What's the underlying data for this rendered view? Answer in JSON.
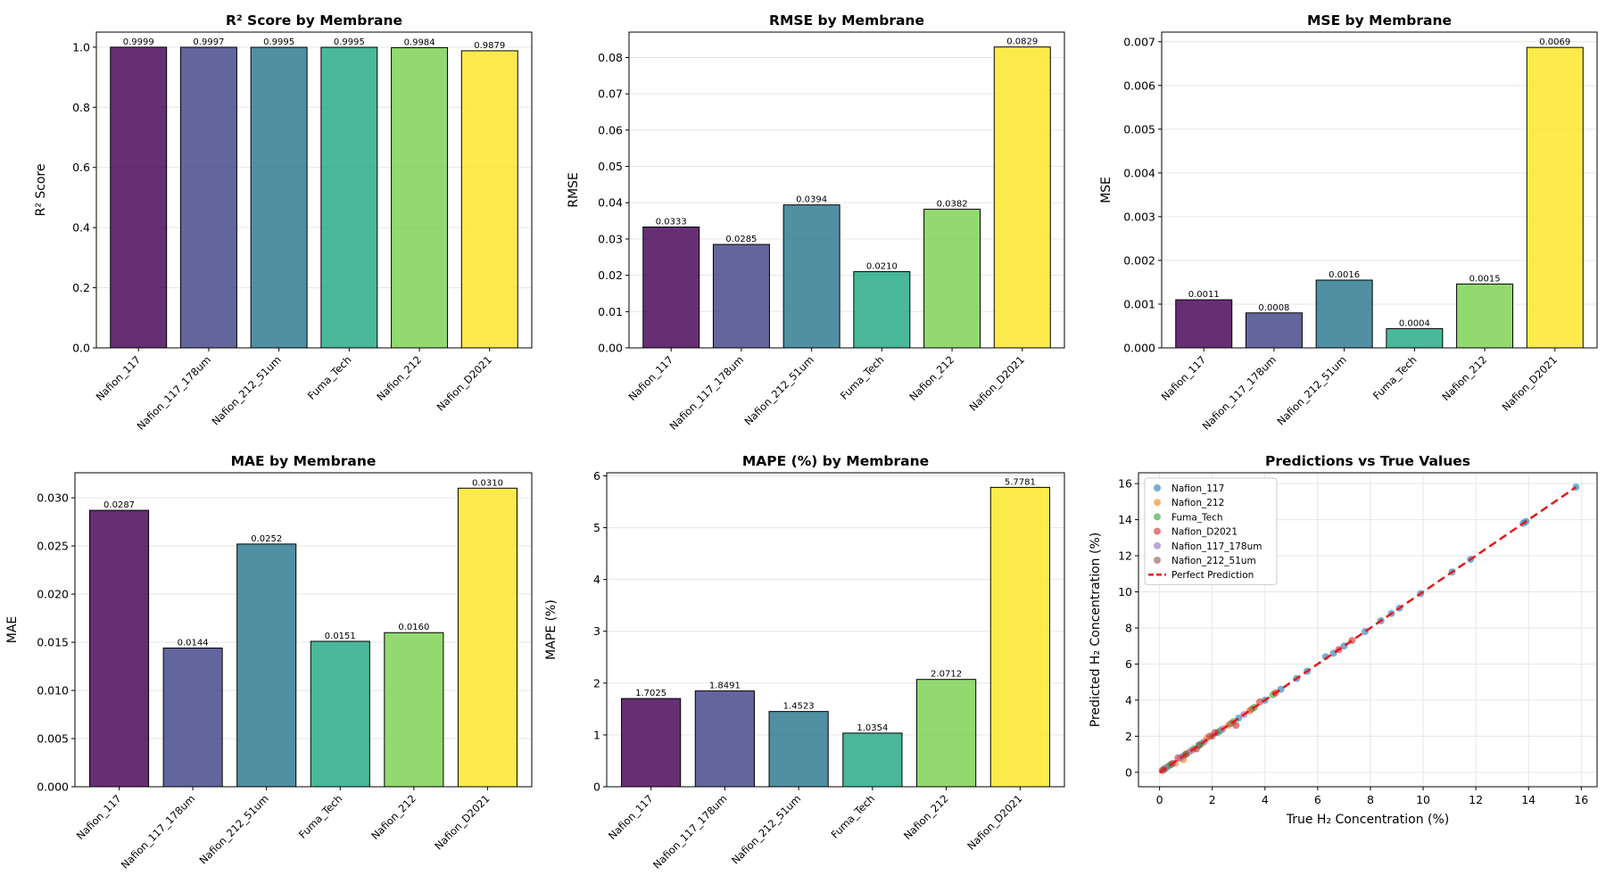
{
  "chart_data": [
    {
      "id": "r2",
      "type": "bar",
      "title": "R² Score by Membrane",
      "xlabel": "",
      "ylabel": "R² Score",
      "categories": [
        "Nafion_117",
        "Nafion_117_178um",
        "Nafion_212_51um",
        "Fuma_Tech",
        "Nafion_212",
        "Nafion_D2021"
      ],
      "values": [
        0.9999,
        0.9997,
        0.9995,
        0.9995,
        0.9984,
        0.9879
      ],
      "value_labels": [
        "0.9999",
        "0.9997",
        "0.9995",
        "0.9995",
        "0.9984",
        "0.9879"
      ],
      "ylim": [
        0,
        1.05
      ],
      "yticks": [
        0.0,
        0.2,
        0.4,
        0.6,
        0.8,
        1.0
      ],
      "ytick_labels": [
        "0.0",
        "0.2",
        "0.4",
        "0.6",
        "0.8",
        "1.0"
      ],
      "colors": [
        "#440154",
        "#414487",
        "#2a788e",
        "#22a884",
        "#7ad151",
        "#fde725"
      ],
      "grid": "y"
    },
    {
      "id": "rmse",
      "type": "bar",
      "title": "RMSE by Membrane",
      "xlabel": "",
      "ylabel": "RMSE",
      "categories": [
        "Nafion_117",
        "Nafion_117_178um",
        "Nafion_212_51um",
        "Fuma_Tech",
        "Nafion_212",
        "Nafion_D2021"
      ],
      "values": [
        0.0333,
        0.0285,
        0.0394,
        0.021,
        0.0382,
        0.0829
      ],
      "value_labels": [
        "0.0333",
        "0.0285",
        "0.0394",
        "0.0210",
        "0.0382",
        "0.0829"
      ],
      "ylim": [
        0,
        0.087
      ],
      "yticks": [
        0.0,
        0.01,
        0.02,
        0.03,
        0.04,
        0.05,
        0.06,
        0.07,
        0.08
      ],
      "ytick_labels": [
        "0.00",
        "0.01",
        "0.02",
        "0.03",
        "0.04",
        "0.05",
        "0.06",
        "0.07",
        "0.08"
      ],
      "colors": [
        "#440154",
        "#414487",
        "#2a788e",
        "#22a884",
        "#7ad151",
        "#fde725"
      ],
      "grid": "y"
    },
    {
      "id": "mse",
      "type": "bar",
      "title": "MSE by Membrane",
      "xlabel": "",
      "ylabel": "MSE",
      "categories": [
        "Nafion_117",
        "Nafion_117_178um",
        "Nafion_212_51um",
        "Fuma_Tech",
        "Nafion_212",
        "Nafion_D2021"
      ],
      "values": [
        0.0011,
        0.0008,
        0.00155,
        0.00044,
        0.00146,
        0.00687
      ],
      "value_labels": [
        "0.0011",
        "0.0008",
        "0.0016",
        "0.0004",
        "0.0015",
        "0.0069"
      ],
      "ylim": [
        0,
        0.00722
      ],
      "yticks": [
        0.0,
        0.001,
        0.002,
        0.003,
        0.004,
        0.005,
        0.006,
        0.007
      ],
      "ytick_labels": [
        "0.000",
        "0.001",
        "0.002",
        "0.003",
        "0.004",
        "0.005",
        "0.006",
        "0.007"
      ],
      "colors": [
        "#440154",
        "#414487",
        "#2a788e",
        "#22a884",
        "#7ad151",
        "#fde725"
      ],
      "grid": "y"
    },
    {
      "id": "mae",
      "type": "bar",
      "title": "MAE by Membrane",
      "xlabel": "",
      "ylabel": "MAE",
      "categories": [
        "Nafion_117",
        "Nafion_117_178um",
        "Nafion_212_51um",
        "Fuma_Tech",
        "Nafion_212",
        "Nafion_D2021"
      ],
      "values": [
        0.0287,
        0.0144,
        0.0252,
        0.0151,
        0.016,
        0.031
      ],
      "value_labels": [
        "0.0287",
        "0.0144",
        "0.0252",
        "0.0151",
        "0.0160",
        "0.0310"
      ],
      "ylim": [
        0,
        0.0326
      ],
      "yticks": [
        0.0,
        0.005,
        0.01,
        0.015,
        0.02,
        0.025,
        0.03
      ],
      "ytick_labels": [
        "0.000",
        "0.005",
        "0.010",
        "0.015",
        "0.020",
        "0.025",
        "0.030"
      ],
      "colors": [
        "#440154",
        "#414487",
        "#2a788e",
        "#22a884",
        "#7ad151",
        "#fde725"
      ],
      "grid": "y"
    },
    {
      "id": "mape",
      "type": "bar",
      "title": "MAPE (%) by Membrane",
      "xlabel": "",
      "ylabel": "MAPE (%)",
      "categories": [
        "Nafion_117",
        "Nafion_117_178um",
        "Nafion_212_51um",
        "Fuma_Tech",
        "Nafion_212",
        "Nafion_D2021"
      ],
      "values": [
        1.7025,
        1.8491,
        1.4523,
        1.0354,
        2.0712,
        5.7781
      ],
      "value_labels": [
        "1.7025",
        "1.8491",
        "1.4523",
        "1.0354",
        "2.0712",
        "5.7781"
      ],
      "ylim": [
        0,
        6.06
      ],
      "yticks": [
        0,
        1,
        2,
        3,
        4,
        5,
        6
      ],
      "ytick_labels": [
        "0",
        "1",
        "2",
        "3",
        "4",
        "5",
        "6"
      ],
      "colors": [
        "#440154",
        "#414487",
        "#2a788e",
        "#22a884",
        "#7ad151",
        "#fde725"
      ],
      "grid": "y"
    },
    {
      "id": "scatter",
      "type": "scatter",
      "title": "Predictions vs True Values",
      "xlabel": "True H₂ Concentration (%)",
      "ylabel": "Predicted H₂ Concentration (%)",
      "xlim": [
        -0.8,
        16.6
      ],
      "ylim": [
        -0.8,
        16.6
      ],
      "xticks": [
        0,
        2,
        4,
        6,
        8,
        10,
        12,
        14,
        16
      ],
      "yticks": [
        0,
        2,
        4,
        6,
        8,
        10,
        12,
        14,
        16
      ],
      "xtick_labels": [
        "0",
        "2",
        "4",
        "6",
        "8",
        "10",
        "12",
        "14",
        "16"
      ],
      "ytick_labels": [
        "0",
        "2",
        "4",
        "6",
        "8",
        "10",
        "12",
        "14",
        "16"
      ],
      "grid": "both",
      "legend_position": "top-left",
      "reference_line": {
        "name": "Perfect Prediction",
        "color": "#e31a1c",
        "from": [
          0,
          0
        ],
        "to": [
          15.8,
          15.8
        ]
      },
      "series": [
        {
          "name": "Nafion_117",
          "color": "#1f77b4",
          "points": [
            [
              0.3,
              0.3
            ],
            [
              0.9,
              0.9
            ],
            [
              1.5,
              1.5
            ],
            [
              2.2,
              2.2
            ],
            [
              3.0,
              3.0
            ],
            [
              4.0,
              4.0
            ],
            [
              4.6,
              4.6
            ],
            [
              5.2,
              5.2
            ],
            [
              5.6,
              5.6
            ],
            [
              6.3,
              6.4
            ],
            [
              6.6,
              6.6
            ],
            [
              7.0,
              7.0
            ],
            [
              7.8,
              7.8
            ],
            [
              8.4,
              8.4
            ],
            [
              8.8,
              8.8
            ],
            [
              9.1,
              9.1
            ],
            [
              9.9,
              9.9
            ],
            [
              11.1,
              11.1
            ],
            [
              11.8,
              11.8
            ],
            [
              13.8,
              13.8
            ],
            [
              13.9,
              13.9
            ],
            [
              15.8,
              15.8
            ]
          ]
        },
        {
          "name": "Nafion_212",
          "color": "#ff7f0e",
          "points": [
            [
              0.2,
              0.2
            ],
            [
              0.6,
              0.5
            ],
            [
              1.1,
              1.1
            ],
            [
              1.8,
              1.9
            ],
            [
              2.6,
              2.6
            ],
            [
              3.4,
              3.4
            ],
            [
              0.9,
              0.7
            ]
          ]
        },
        {
          "name": "Fuma_Tech",
          "color": "#2ca02c",
          "points": [
            [
              0.4,
              0.4
            ],
            [
              1.0,
              1.0
            ],
            [
              1.6,
              1.6
            ],
            [
              2.3,
              2.3
            ],
            [
              3.6,
              3.6
            ],
            [
              4.3,
              4.3
            ],
            [
              2.8,
              2.8
            ],
            [
              1.3,
              1.3
            ]
          ]
        },
        {
          "name": "Nafion_D2021",
          "color": "#d62728",
          "points": [
            [
              0.1,
              0.1
            ],
            [
              0.7,
              0.8
            ],
            [
              1.4,
              1.3
            ],
            [
              2.1,
              2.2
            ],
            [
              2.9,
              2.6
            ],
            [
              3.8,
              3.9
            ],
            [
              4.4,
              4.4
            ],
            [
              6.8,
              6.8
            ],
            [
              7.3,
              7.3
            ],
            [
              1.9,
              2.0
            ]
          ]
        },
        {
          "name": "Nafion_117_178um",
          "color": "#9467bd",
          "points": [
            [
              0.2,
              0.2
            ],
            [
              0.5,
              0.5
            ],
            [
              0.8,
              0.8
            ],
            [
              1.2,
              1.2
            ],
            [
              1.7,
              1.7
            ],
            [
              2.4,
              2.4
            ],
            [
              3.2,
              3.2
            ]
          ]
        },
        {
          "name": "Nafion_212_51um",
          "color": "#8c564b",
          "points": [
            [
              0.15,
              0.15
            ],
            [
              0.45,
              0.45
            ],
            [
              1.0,
              1.0
            ],
            [
              1.5,
              1.5
            ],
            [
              2.0,
              2.0
            ],
            [
              2.7,
              2.7
            ],
            [
              3.5,
              3.5
            ]
          ]
        }
      ]
    }
  ]
}
